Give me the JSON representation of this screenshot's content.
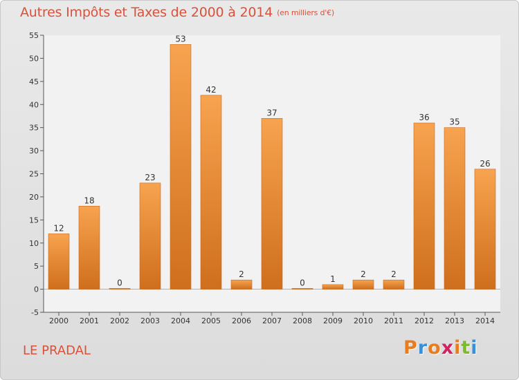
{
  "header": {
    "title": "Autres Impôts et Taxes de 2000 à 2014",
    "unit": "(en milliers d'€)"
  },
  "footer": {
    "place": "LE PRADAL",
    "logo": [
      "P",
      "r",
      "o",
      "x",
      "i",
      "t",
      "i"
    ],
    "logo_colors": [
      "#e87c1e",
      "#3a8fd6",
      "#e87c1e",
      "#d3225f",
      "#e87c1e",
      "#7cbc2a",
      "#3a8fd6"
    ]
  },
  "colors": {
    "title": "#d9513a",
    "bar_light": "#f7a34f",
    "bar_dark": "#cf6f1d",
    "background": "#e2e2e2"
  },
  "chart_data": {
    "type": "bar",
    "title": "Autres Impôts et Taxes de 2000 à 2014",
    "subtitle": "(en milliers d'€)",
    "categories": [
      "2000",
      "2001",
      "2002",
      "2003",
      "2004",
      "2005",
      "2006",
      "2007",
      "2008",
      "2009",
      "2010",
      "2011",
      "2012",
      "2013",
      "2014"
    ],
    "values": [
      12,
      18,
      0,
      23,
      53,
      42,
      2,
      37,
      0,
      1,
      2,
      2,
      36,
      35,
      26
    ],
    "ylim": [
      -5,
      55
    ],
    "yticks": [
      -5,
      0,
      5,
      10,
      15,
      20,
      25,
      30,
      35,
      40,
      45,
      50,
      55
    ],
    "grid": false,
    "legend": "none"
  }
}
